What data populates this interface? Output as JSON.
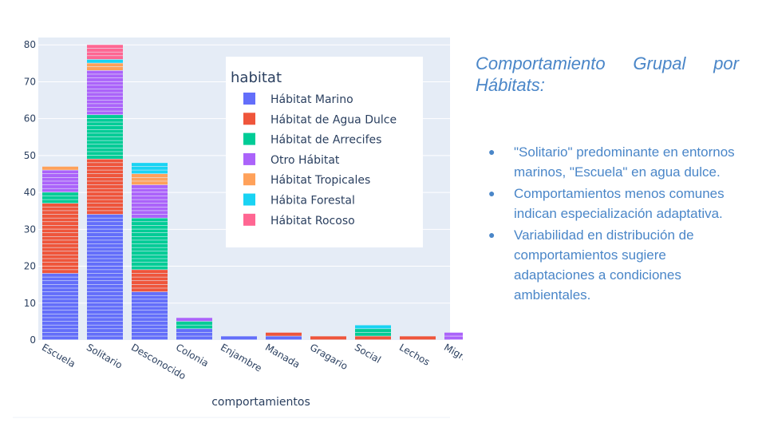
{
  "chart_data": {
    "type": "bar",
    "barmode": "stack",
    "categories": [
      "Escuela",
      "Solitario",
      "Desconocido",
      "Colonia",
      "Enjambre",
      "Manada",
      "Gragario",
      "Social",
      "Lechos",
      "Migratorio"
    ],
    "xlabel": "comportamientos",
    "ylabel": "",
    "ylim": [
      0,
      82
    ],
    "yticks": [
      0,
      10,
      20,
      30,
      40,
      50,
      60,
      70,
      80
    ],
    "legend_title": "habitat",
    "legend_position": "top-right inside plot",
    "grid": true,
    "series": [
      {
        "name": "Hábitat Marino",
        "color": "#636efa",
        "values": [
          18,
          34,
          13,
          3,
          1,
          1,
          0,
          0,
          0,
          0
        ]
      },
      {
        "name": "Hábitat de Agua Dulce",
        "color": "#ef553b",
        "values": [
          19,
          15,
          6,
          0,
          0,
          1,
          1,
          1,
          1,
          0
        ]
      },
      {
        "name": "Hábitat de Arrecifes",
        "color": "#00cc96",
        "values": [
          3,
          12,
          14,
          2,
          0,
          0,
          0,
          2,
          0,
          0
        ]
      },
      {
        "name": "Otro Hábitat",
        "color": "#ab63fa",
        "values": [
          6,
          12,
          9,
          1,
          0,
          0,
          0,
          0,
          0,
          2
        ]
      },
      {
        "name": "Hábitat Tropicales",
        "color": "#ffa15a",
        "values": [
          1,
          2,
          3,
          0,
          0,
          0,
          0,
          0,
          0,
          0
        ]
      },
      {
        "name": "Hábita Forestal",
        "color": "#19d3f3",
        "values": [
          0,
          1,
          3,
          0,
          0,
          0,
          0,
          1,
          0,
          0
        ]
      },
      {
        "name": "Hábitat Rocoso",
        "color": "#ff6692",
        "values": [
          0,
          4,
          0,
          0,
          0,
          0,
          0,
          0,
          0,
          0
        ]
      }
    ]
  },
  "side_panel": {
    "title_line1": "Comportamiento Grupal por",
    "title_line2": "Hábitats:",
    "bullet_char": "●",
    "bullets": [
      "\"Solitario\" predominante en entornos marinos, \"Escuela\" en agua dulce.",
      "Comportamientos menos comunes indican especialización adaptativa.",
      "Variabilidad en distribución de comportamientos sugiere adaptaciones a condiciones ambientales."
    ]
  }
}
